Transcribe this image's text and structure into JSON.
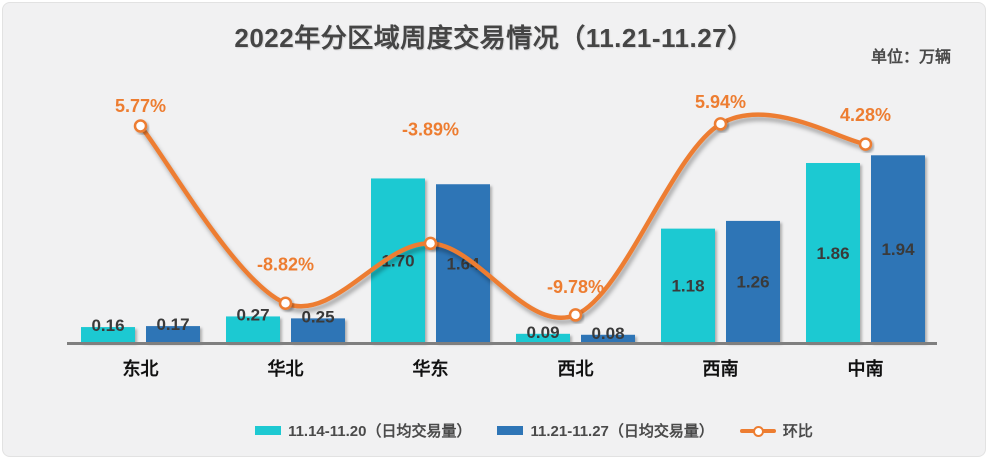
{
  "title": "2022年分区域周度交易情况（11.21-11.27）",
  "unit_label": "单位：万辆",
  "chart_data": {
    "type": "bar+line",
    "title": "2022年分区域周度交易情况（11.21-11.27）",
    "unit_label": "单位：万辆",
    "categories": [
      "东北",
      "华北",
      "华东",
      "西北",
      "西南",
      "中南"
    ],
    "series": [
      {
        "name": "11.14-11.20（日均交易量）",
        "type": "bar",
        "color": "#1ec9d2",
        "values": [
          0.16,
          0.27,
          1.7,
          0.09,
          1.18,
          1.86
        ]
      },
      {
        "name": "11.21-11.27（日均交易量）",
        "type": "bar",
        "color": "#2e75b6",
        "values": [
          0.17,
          0.25,
          1.64,
          0.08,
          1.26,
          1.94
        ]
      },
      {
        "name": "环比",
        "type": "line",
        "color": "#ed7d31",
        "values": [
          5.77,
          -8.82,
          -3.89,
          -9.78,
          5.94,
          4.28
        ],
        "value_suffix": "%"
      }
    ],
    "value_decimals": 2,
    "legend_position": "bottom",
    "grid": false,
    "axis_line_color": "#7f7f7f",
    "background": "#f1f1f2",
    "category_label_color": "#111111",
    "bar_value_label_color": "#3a3a3a",
    "marker_fill": "#ffffff"
  }
}
